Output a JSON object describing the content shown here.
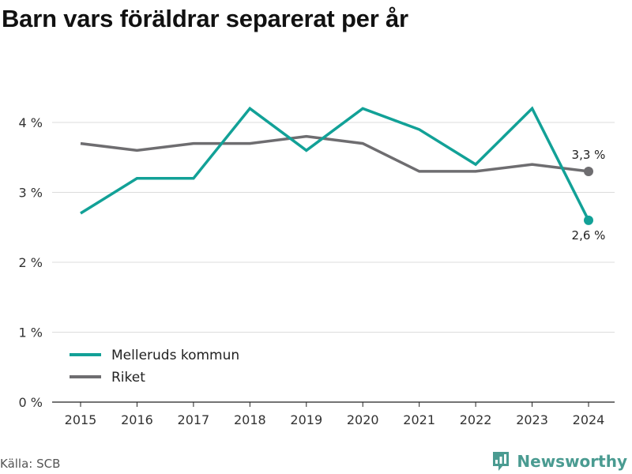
{
  "title": "Barn vars föräldrar separerat per år",
  "source": "Källa: SCB",
  "brand": {
    "name": "Newsworthy",
    "icon": "newsworthy-logo-icon",
    "color": "#4a9b91"
  },
  "chart_data": {
    "type": "line",
    "title": "Barn vars föräldrar separerat per år",
    "x": [
      "2015",
      "2016",
      "2017",
      "2018",
      "2019",
      "2020",
      "2021",
      "2022",
      "2023",
      "2024"
    ],
    "ylim": [
      0,
      4
    ],
    "yticks": [
      0,
      1,
      2,
      3,
      4
    ],
    "ytick_labels": [
      "0 %",
      "1 %",
      "2 %",
      "3 %",
      "4 %"
    ],
    "y_unit": "%",
    "grid": true,
    "legend_placement": "bottom-left",
    "series": [
      {
        "name": "Melleruds kommun",
        "color": "#12a197",
        "values": [
          2.7,
          3.2,
          3.2,
          4.2,
          3.6,
          4.2,
          3.9,
          3.4,
          4.2,
          2.6
        ],
        "end_label": "2,6 %"
      },
      {
        "name": "Riket",
        "color": "#6e6d70",
        "values": [
          3.7,
          3.6,
          3.7,
          3.7,
          3.8,
          3.7,
          3.3,
          3.3,
          3.4,
          3.3
        ],
        "end_label": "3,3 %"
      }
    ]
  }
}
